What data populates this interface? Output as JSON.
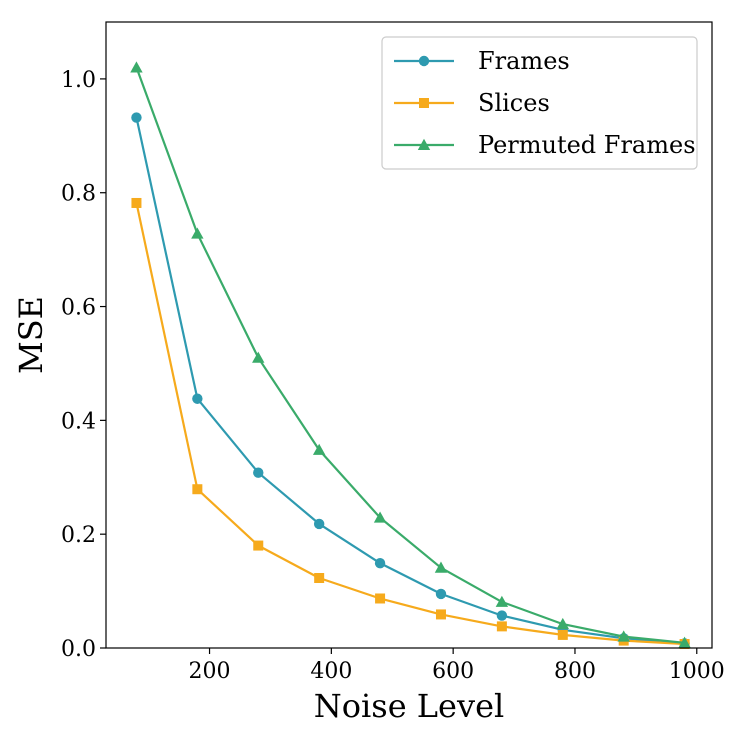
{
  "chart_data": {
    "type": "line",
    "xlabel": "Noise Level",
    "ylabel": "MSE",
    "xlim": [
      30,
      1025
    ],
    "ylim": [
      0.0,
      1.1
    ],
    "x_ticks": [
      200,
      400,
      600,
      800,
      1000
    ],
    "x_tick_labels": [
      "200",
      "400",
      "600",
      "800",
      "1000"
    ],
    "y_ticks": [
      0.0,
      0.2,
      0.4,
      0.6,
      0.8,
      1.0
    ],
    "y_tick_labels": [
      "0.0",
      "0.2",
      "0.4",
      "0.6",
      "0.8",
      "1.0"
    ],
    "grid": false,
    "legend_position": "top-right",
    "x": [
      80,
      180,
      280,
      380,
      480,
      580,
      680,
      780,
      880,
      980
    ],
    "series": [
      {
        "name": "Frames",
        "color": "#2e9ab0",
        "marker": "circle",
        "values": [
          0.932,
          0.438,
          0.308,
          0.218,
          0.149,
          0.095,
          0.057,
          0.032,
          0.017,
          0.008
        ]
      },
      {
        "name": "Slices",
        "color": "#f6aa1c",
        "marker": "square",
        "values": [
          0.782,
          0.279,
          0.18,
          0.123,
          0.087,
          0.059,
          0.038,
          0.023,
          0.013,
          0.007
        ]
      },
      {
        "name": "Permuted Frames",
        "color": "#3aab6a",
        "marker": "triangle",
        "values": [
          1.02,
          0.728,
          0.51,
          0.348,
          0.229,
          0.141,
          0.081,
          0.042,
          0.02,
          0.009
        ]
      }
    ]
  }
}
